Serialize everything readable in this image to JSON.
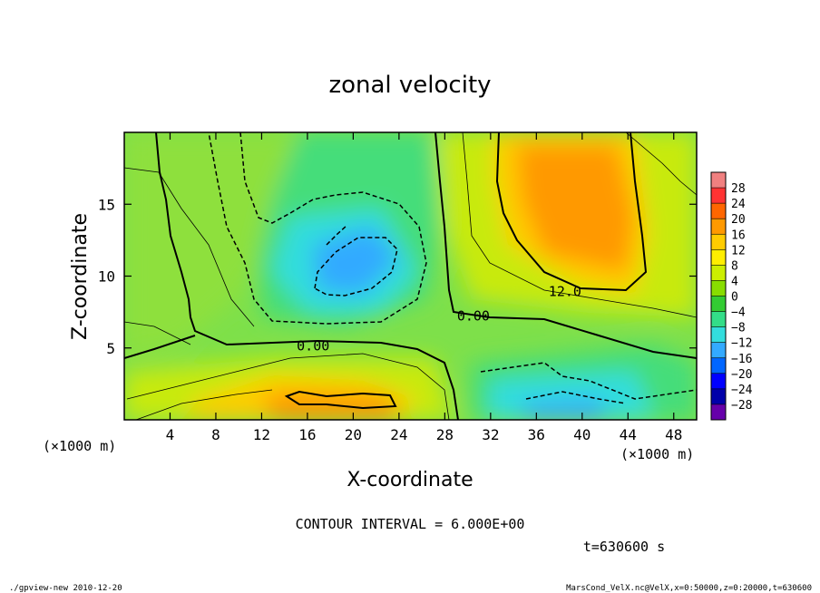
{
  "chart_data": {
    "type": "heatmap",
    "title": "zonal velocity",
    "xlabel": "X-coordinate",
    "ylabel": "Z-coordinate",
    "x_unit_label": "(×1000 m)",
    "y_unit_label": "(×1000 m)",
    "xlim": [
      0,
      50
    ],
    "ylim": [
      0,
      20
    ],
    "x_ticks": [
      4,
      8,
      12,
      16,
      20,
      24,
      28,
      32,
      36,
      40,
      44,
      48
    ],
    "y_ticks": [
      5,
      10,
      15
    ],
    "colorbar": {
      "ticks": [
        28,
        24,
        20,
        16,
        12,
        8,
        4,
        0,
        -4,
        -8,
        -12,
        -16,
        -20,
        -24,
        -28
      ],
      "colors": [
        "#f08080",
        "#ff3333",
        "#ff6600",
        "#ff9900",
        "#ffcc00",
        "#ffee00",
        "#ccee00",
        "#88dd00",
        "#33cc33",
        "#33dd88",
        "#33dddd",
        "#33aaff",
        "#0066ff",
        "#0000ff",
        "#0000aa",
        "#6600aa"
      ]
    },
    "contour_labels": [
      {
        "text": "0.00",
        "x": 30.5,
        "z": 7.3
      },
      {
        "text": "0.00",
        "x": 16.5,
        "z": 5.2
      },
      {
        "text": "12.0",
        "x": 38.5,
        "z": 9.0
      }
    ],
    "features": [
      {
        "name": "negative core",
        "x": 20,
        "z": 11,
        "value": -12
      },
      {
        "name": "positive core",
        "x": 39,
        "z": 15,
        "value": 16
      },
      {
        "name": "near-surface positive jet",
        "x": 20,
        "z": 1.0,
        "value": 16
      },
      {
        "name": "near-surface negative",
        "x": 38,
        "z": 0.6,
        "value": -16
      }
    ],
    "contour_interval_text": "CONTOUR INTERVAL = 6.000E+00",
    "time_text": "t=630600 s"
  },
  "footer": {
    "left": "./gpview-new  2010-12-20",
    "right": "MarsCond_VelX.nc@VelX,x=0:50000,z=0:20000,t=630600"
  }
}
